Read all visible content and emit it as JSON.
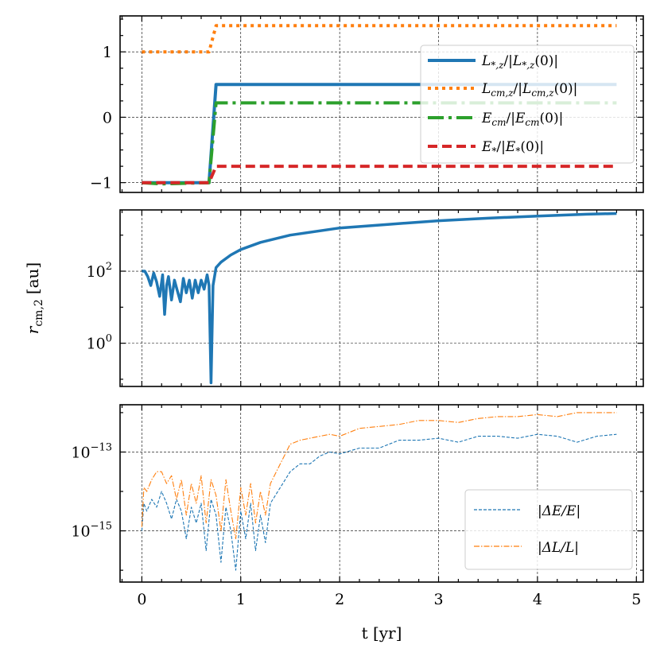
{
  "chart_data": [
    {
      "type": "line",
      "panel": "top",
      "xlabel": "",
      "ylabel": "",
      "xlim": [
        -0.22,
        5.07
      ],
      "ylim": [
        -1.15,
        1.55
      ],
      "yscale": "linear",
      "yticks": [
        -1,
        0,
        1
      ],
      "ytick_labels": [
        "−1",
        "0",
        "1"
      ],
      "grid": true,
      "legend_position": "top-right",
      "series": [
        {
          "name": "L*,z/|L*,z(0)|",
          "legend_label": "L_{*,z}/|L_{*,z}(0)|",
          "color": "#1f77b4",
          "style": "solid",
          "x": [
            0,
            0.68,
            0.75,
            4.8
          ],
          "y": [
            -1.0,
            -1.0,
            0.5,
            0.5
          ]
        },
        {
          "name": "Lcm,z/|Lcm,z(0)|",
          "legend_label": "L_{cm,z}/|L_{cm,z}(0)|",
          "color": "#ff7f0e",
          "style": "dotted",
          "x": [
            0,
            0.68,
            0.75,
            4.8
          ],
          "y": [
            1.0,
            1.0,
            1.4,
            1.4
          ]
        },
        {
          "name": "Ecm/|Ecm(0)|",
          "legend_label": "E_{cm}/|E_{cm}(0)|",
          "color": "#2ca02c",
          "style": "dashdot",
          "x": [
            0,
            0.2,
            0.68,
            0.75,
            4.8
          ],
          "y": [
            -1.0,
            -1.02,
            -1.0,
            0.22,
            0.22
          ]
        },
        {
          "name": "E*/|E*(0)|",
          "legend_label": "E_*/|E_*(0)|",
          "color": "#d62728",
          "style": "dashed",
          "x": [
            0,
            0.68,
            0.75,
            4.8
          ],
          "y": [
            -1.0,
            -1.0,
            -0.75,
            -0.75
          ]
        }
      ]
    },
    {
      "type": "line",
      "panel": "middle",
      "xlabel": "",
      "ylabel": "r_{cm,2} [au]",
      "ylabel_text": "r",
      "ylabel_sub": "cm,2",
      "ylabel_unit": "[au]",
      "yscale": "log",
      "ylim_log10": [
        -1.2,
        3.7
      ],
      "yticks_log10": [
        0,
        2
      ],
      "ytick_base": "10",
      "ytick_exponents": [
        "0",
        "2"
      ],
      "grid": true,
      "series": [
        {
          "name": "r_cm,2",
          "color": "#1f77b4",
          "style": "solid",
          "x": [
            0,
            0.03,
            0.06,
            0.09,
            0.12,
            0.15,
            0.18,
            0.21,
            0.23,
            0.25,
            0.27,
            0.3,
            0.33,
            0.36,
            0.39,
            0.42,
            0.45,
            0.48,
            0.51,
            0.54,
            0.57,
            0.6,
            0.63,
            0.66,
            0.68,
            0.7,
            0.72,
            0.75,
            0.8,
            0.9,
            1.0,
            1.2,
            1.5,
            2.0,
            2.5,
            3.0,
            3.5,
            4.0,
            4.5,
            4.8
          ],
          "y_log10": [
            2.0,
            2.0,
            1.85,
            1.6,
            1.95,
            1.7,
            1.3,
            1.9,
            0.8,
            1.6,
            1.85,
            1.2,
            1.75,
            1.45,
            1.15,
            1.8,
            1.4,
            1.75,
            1.25,
            1.75,
            1.4,
            1.75,
            1.5,
            1.9,
            1.6,
            -1.1,
            1.6,
            2.1,
            2.25,
            2.45,
            2.6,
            2.8,
            3.0,
            3.2,
            3.3,
            3.4,
            3.47,
            3.53,
            3.58,
            3.6
          ]
        }
      ]
    },
    {
      "type": "line",
      "panel": "bottom",
      "xlabel": "t [yr]",
      "ylabel": "",
      "yscale": "log",
      "ylim_log10": [
        -16.3,
        -11.8
      ],
      "yticks_log10": [
        -15,
        -13
      ],
      "ytick_base": "10",
      "ytick_exponents": [
        "−15",
        "−13"
      ],
      "xticks": [
        0,
        1,
        2,
        3,
        4,
        5
      ],
      "xtick_labels": [
        "0",
        "1",
        "2",
        "3",
        "4",
        "5"
      ],
      "grid": true,
      "legend_position": "lower-right",
      "series": [
        {
          "name": "|ΔE/E|",
          "color": "#1f77b4",
          "style": "dashed",
          "x": [
            0,
            0.02,
            0.05,
            0.1,
            0.15,
            0.2,
            0.25,
            0.3,
            0.35,
            0.4,
            0.45,
            0.5,
            0.55,
            0.6,
            0.65,
            0.7,
            0.75,
            0.8,
            0.85,
            0.9,
            0.95,
            1.0,
            1.05,
            1.1,
            1.15,
            1.2,
            1.25,
            1.3,
            1.4,
            1.5,
            1.6,
            1.7,
            1.8,
            1.9,
            2.0,
            2.2,
            2.4,
            2.6,
            2.8,
            3.0,
            3.2,
            3.4,
            3.6,
            3.8,
            4.0,
            4.2,
            4.4,
            4.6,
            4.8
          ],
          "y_log10": [
            -15.0,
            -14.3,
            -14.5,
            -14.2,
            -14.4,
            -14.0,
            -14.3,
            -14.7,
            -14.2,
            -14.5,
            -15.2,
            -14.4,
            -14.8,
            -14.3,
            -15.5,
            -14.2,
            -14.6,
            -15.8,
            -14.4,
            -15.0,
            -16.0,
            -14.5,
            -15.2,
            -14.3,
            -15.5,
            -14.6,
            -15.3,
            -14.3,
            -13.9,
            -13.5,
            -13.3,
            -13.3,
            -13.1,
            -13.0,
            -13.05,
            -12.9,
            -12.9,
            -12.7,
            -12.7,
            -12.65,
            -12.75,
            -12.6,
            -12.6,
            -12.65,
            -12.55,
            -12.6,
            -12.75,
            -12.6,
            -12.55
          ]
        },
        {
          "name": "|ΔL/L|",
          "color": "#ff7f0e",
          "style": "dashdot",
          "x": [
            0,
            0.02,
            0.05,
            0.1,
            0.15,
            0.2,
            0.25,
            0.3,
            0.35,
            0.4,
            0.45,
            0.5,
            0.55,
            0.6,
            0.65,
            0.7,
            0.75,
            0.8,
            0.85,
            0.9,
            0.95,
            1.0,
            1.05,
            1.1,
            1.15,
            1.2,
            1.25,
            1.3,
            1.4,
            1.5,
            1.6,
            1.7,
            1.8,
            1.9,
            2.0,
            2.2,
            2.4,
            2.6,
            2.8,
            3.0,
            3.2,
            3.4,
            3.6,
            3.8,
            4.0,
            4.2,
            4.4,
            4.6,
            4.8
          ],
          "y_log10": [
            -14.9,
            -13.9,
            -14.0,
            -13.7,
            -13.5,
            -13.5,
            -13.8,
            -13.6,
            -14.2,
            -13.7,
            -14.6,
            -13.8,
            -14.3,
            -13.6,
            -14.8,
            -13.7,
            -14.1,
            -15.0,
            -13.7,
            -14.5,
            -15.2,
            -13.9,
            -14.6,
            -13.8,
            -14.8,
            -14.0,
            -14.6,
            -13.8,
            -13.3,
            -12.8,
            -12.7,
            -12.65,
            -12.6,
            -12.55,
            -12.6,
            -12.4,
            -12.35,
            -12.3,
            -12.2,
            -12.2,
            -12.25,
            -12.15,
            -12.1,
            -12.1,
            -12.05,
            -12.1,
            -12.0,
            -12.0,
            -12.0
          ]
        }
      ]
    }
  ],
  "legends": {
    "top": [
      {
        "base": "L",
        "sub": "*,z",
        "mid": "/|",
        "base2": "L",
        "sub2": "*,z",
        "tail": "(0)|"
      },
      {
        "base": "L",
        "sub": "cm,z",
        "mid": "/|",
        "base2": "L",
        "sub2": "cm,z",
        "tail": "(0)|"
      },
      {
        "base": "E",
        "sub": "cm",
        "mid": "/|",
        "base2": "E",
        "sub2": "cm",
        "tail": "(0)|"
      },
      {
        "base": "E",
        "sub": "*",
        "mid": "/|",
        "base2": "E",
        "sub2": "*",
        "tail": "(0)|"
      }
    ],
    "bottom": [
      {
        "label": "|ΔE/E|"
      },
      {
        "label": "|ΔL/L|"
      }
    ]
  }
}
